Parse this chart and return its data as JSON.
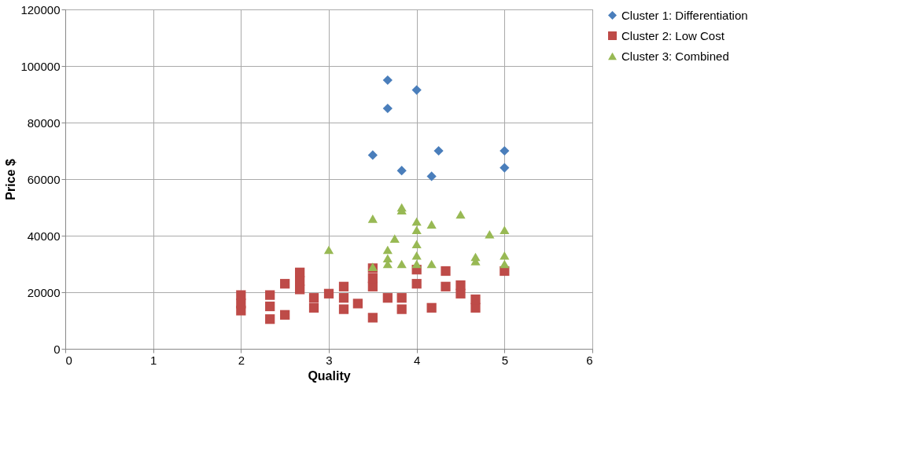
{
  "chart_data": {
    "type": "scatter",
    "xlabel": "Quality",
    "ylabel": "Price $",
    "xlim": [
      0,
      6
    ],
    "xticks": [
      0,
      1,
      2,
      3,
      4,
      5,
      6
    ],
    "ylim": [
      0,
      120000
    ],
    "yticks": [
      0,
      20000,
      40000,
      60000,
      80000,
      100000,
      120000
    ],
    "grid": true,
    "legend": "right",
    "series": [
      {
        "name": "Cluster 1: Differentiation",
        "color": "#4a7ebb",
        "marker": "diamond",
        "x": [
          3.67,
          3.67,
          4,
          3.5,
          3.83,
          4.25,
          4.17,
          5,
          5
        ],
        "values": [
          95000,
          85000,
          91500,
          68500,
          63000,
          70000,
          61000,
          70000,
          64000
        ]
      },
      {
        "name": "Cluster 2: Low Cost",
        "color": "#be4b48",
        "marker": "square",
        "x": [
          2,
          2,
          2,
          2.33,
          2.33,
          2.33,
          2.5,
          2.5,
          2.67,
          2.67,
          2.67,
          2.83,
          2.83,
          3,
          3.17,
          3.17,
          3.17,
          3.33,
          3.5,
          3.5,
          3.5,
          3.5,
          3.67,
          3.83,
          3.83,
          4,
          4,
          4.17,
          4.33,
          4.33,
          4.5,
          4.5,
          4.67,
          4.67,
          5
        ],
        "values": [
          13500,
          16000,
          19000,
          10500,
          15000,
          19000,
          12000,
          23000,
          21000,
          24000,
          27000,
          14500,
          18000,
          19500,
          14000,
          18000,
          22000,
          16000,
          11000,
          22000,
          25000,
          28500,
          18000,
          14000,
          18000,
          23000,
          28000,
          14500,
          22000,
          27500,
          19500,
          22500,
          14500,
          17500,
          27500
        ]
      },
      {
        "name": "Cluster 3: Combined",
        "color": "#98b954",
        "marker": "triangle",
        "x": [
          3,
          3.5,
          3.5,
          3.67,
          3.67,
          3.67,
          3.75,
          3.83,
          3.83,
          3.83,
          4,
          4,
          4,
          4,
          4,
          4.17,
          4.17,
          4.5,
          4.67,
          4.67,
          4.83,
          5,
          5,
          5
        ],
        "values": [
          35000,
          46000,
          29000,
          30000,
          32000,
          35000,
          39000,
          49000,
          50000,
          30000,
          45000,
          42000,
          37000,
          33000,
          30000,
          44000,
          30000,
          47500,
          31000,
          32500,
          40500,
          42000,
          33000,
          30000
        ]
      }
    ]
  }
}
